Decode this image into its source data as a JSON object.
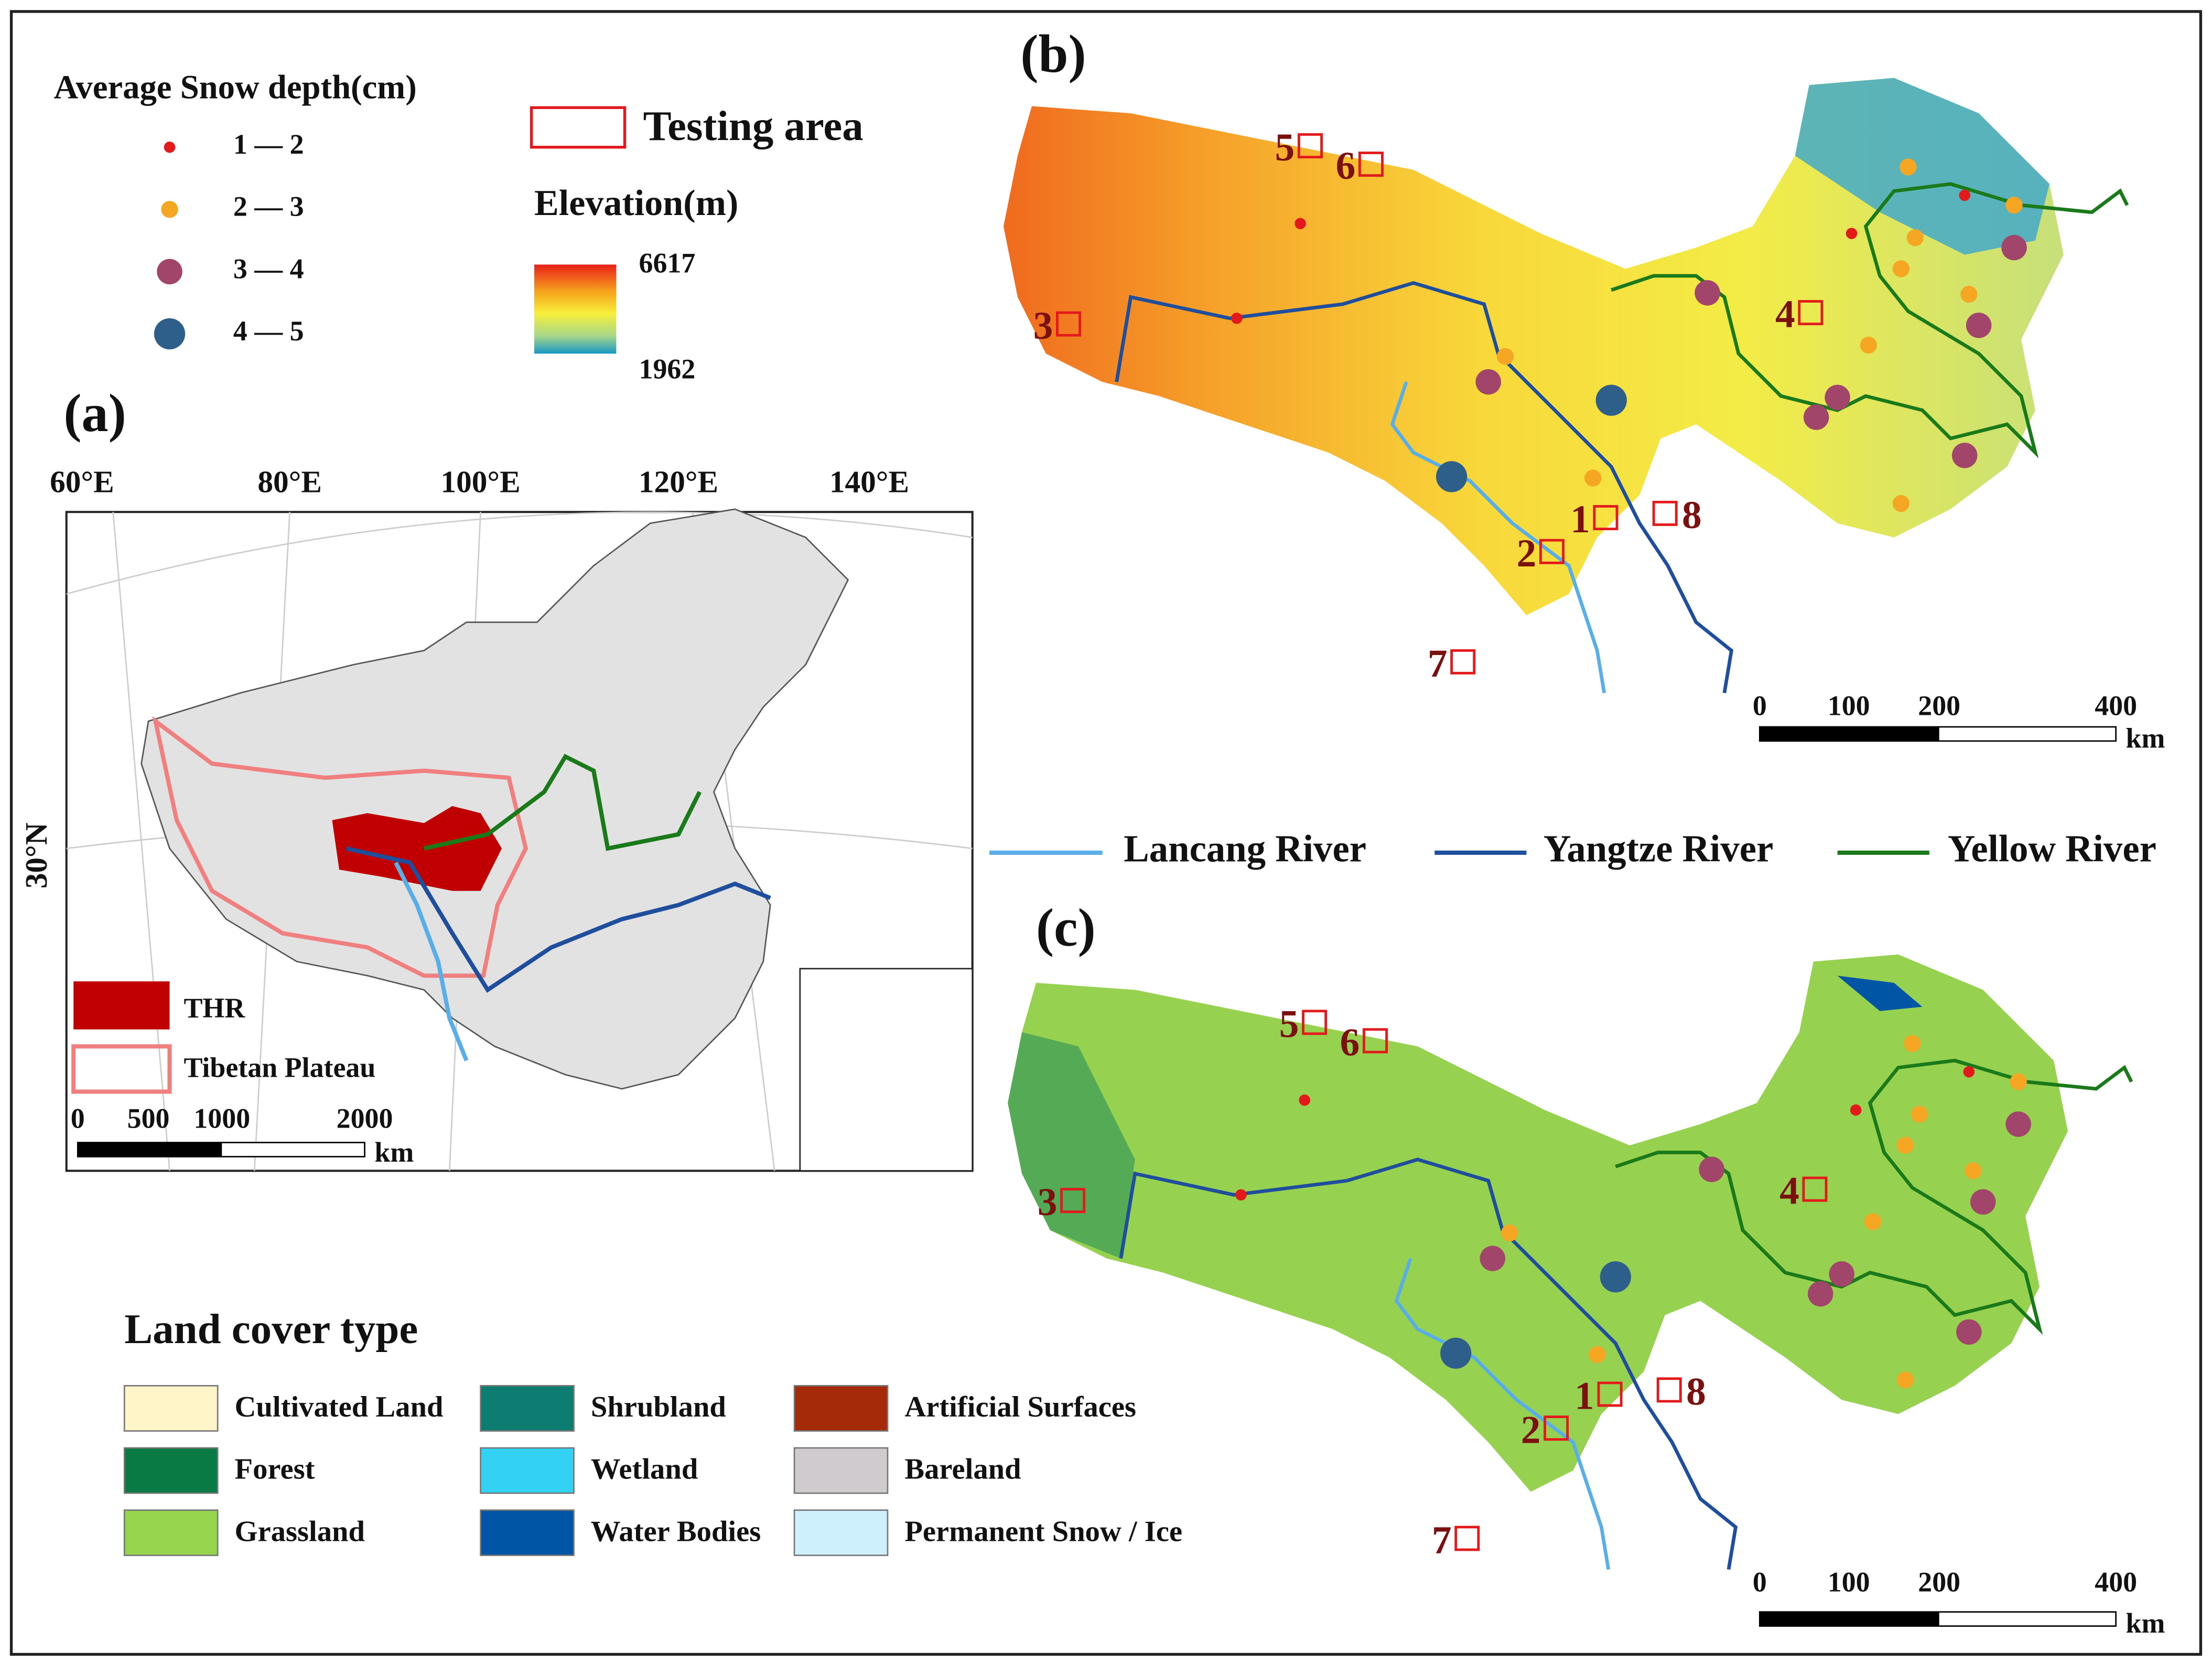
{
  "snow_legend": {
    "title": "Average Snow depth(cm)",
    "classes": [
      "1 — 2",
      "2 — 3",
      "3 — 4",
      "4 — 5"
    ]
  },
  "testing_area": "Testing area",
  "elevation": {
    "title": "Elevation(m)",
    "max": "6617",
    "min": "1962"
  },
  "panels": {
    "a": "(a)",
    "b": "(b)",
    "c": "(c)"
  },
  "panel_a": {
    "lon_labels": [
      "60°E",
      "80°E",
      "100°E",
      "120°E",
      "140°E"
    ],
    "lat_label": "30°N",
    "legend": [
      "THR",
      "Tibetan Plateau"
    ],
    "scale": [
      "0",
      "500",
      "1000",
      "2000"
    ],
    "scale_unit": "km"
  },
  "scale_bar": {
    "labels": [
      "0",
      "100",
      "200",
      "400"
    ],
    "unit": "km"
  },
  "rivers": [
    "Lancang River",
    "Yangtze River",
    "Yellow River"
  ],
  "test_sites": [
    "1",
    "2",
    "3",
    "4",
    "5",
    "6",
    "7",
    "8"
  ],
  "land_cover": {
    "title": "Land cover type",
    "classes": [
      "Cultivated Land",
      "Forest",
      "Grassland",
      "Shrubland",
      "Wetland",
      "Water Bodies",
      "Artificial Surfaces",
      "Bareland",
      "Permanent Snow / Ice"
    ]
  }
}
